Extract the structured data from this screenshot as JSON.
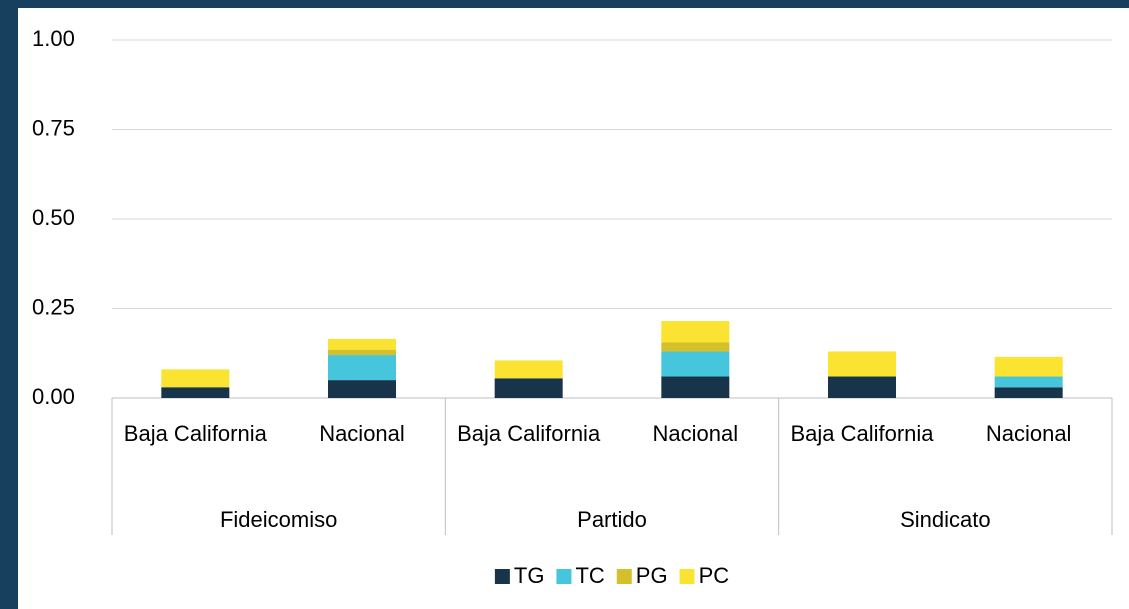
{
  "chart_data": {
    "type": "stacked_bar",
    "groups": [
      "Fideicomiso",
      "Partido",
      "Sindicato"
    ],
    "categories": [
      "Baja California",
      "Nacional",
      "Baja California",
      "Nacional",
      "Baja California",
      "Nacional"
    ],
    "series": [
      {
        "name": "TG",
        "color": "#17344a",
        "values": [
          0.03,
          0.05,
          0.055,
          0.06,
          0.06,
          0.03
        ]
      },
      {
        "name": "TC",
        "color": "#45c6dc",
        "values": [
          0,
          0.07,
          0,
          0.07,
          0,
          0.03
        ]
      },
      {
        "name": "PG",
        "color": "#d4c02a",
        "values": [
          0,
          0.015,
          0,
          0.025,
          0,
          0
        ]
      },
      {
        "name": "PC",
        "color": "#fbe332",
        "values": [
          0.05,
          0.03,
          0.05,
          0.06,
          0.07,
          0.055
        ]
      }
    ],
    "ylim": [
      0,
      1
    ],
    "yticks": [
      {
        "value": 0,
        "label": "0.00"
      },
      {
        "value": 0.25,
        "label": "0.25"
      },
      {
        "value": 0.5,
        "label": "0.50"
      },
      {
        "value": 0.75,
        "label": "0.75"
      },
      {
        "value": 1,
        "label": "1.00"
      }
    ],
    "grid": true,
    "legend": "bottom"
  }
}
